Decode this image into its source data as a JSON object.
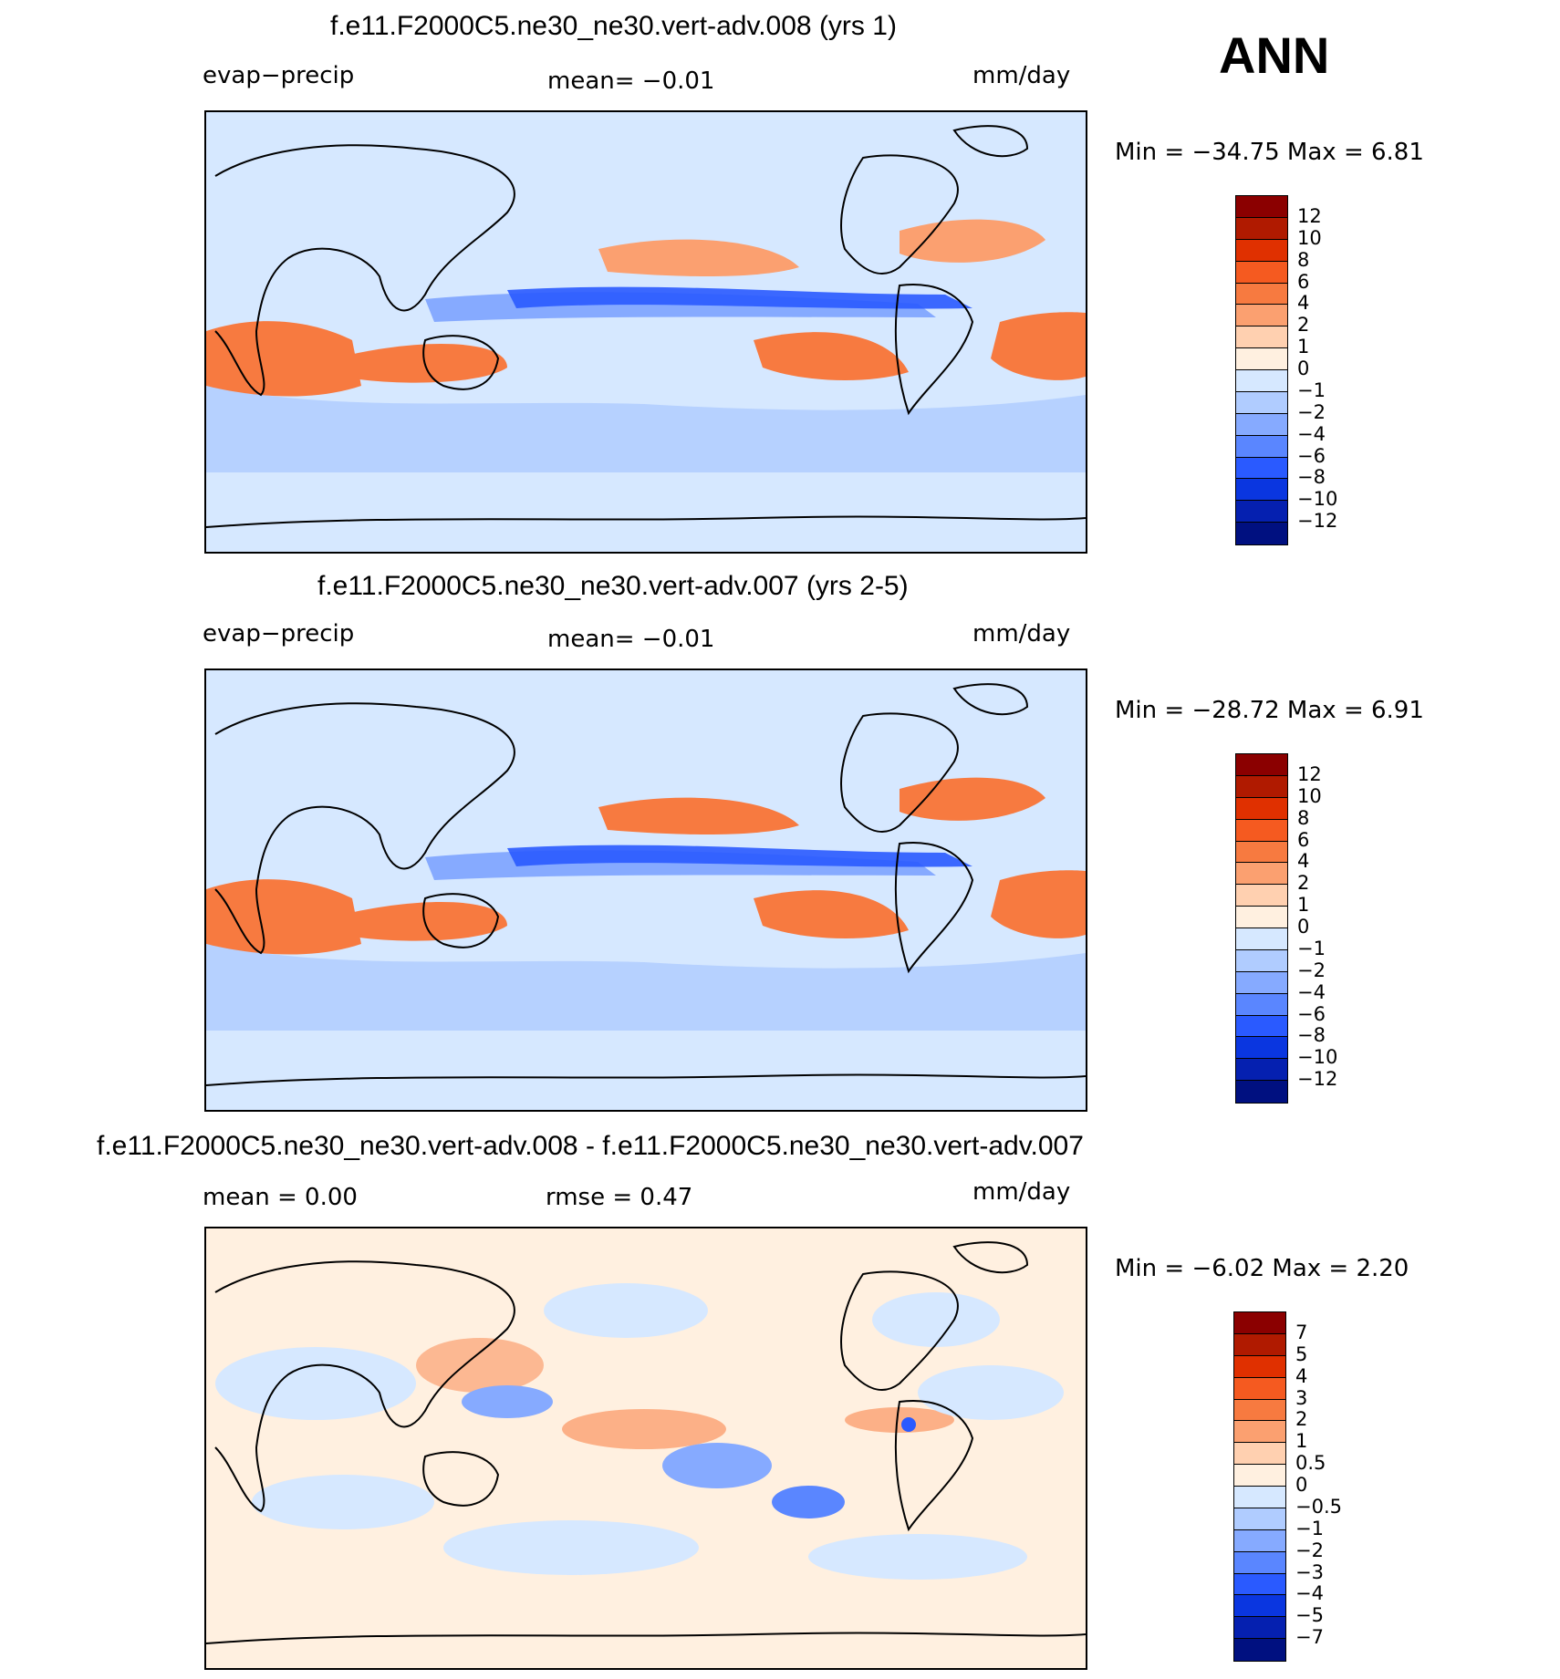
{
  "season_label": "ANN",
  "panels": [
    {
      "title": "f.e11.F2000C5.ne30_ne30.vert-adv.008 (yrs 1)",
      "left_label": "evap−precip",
      "center_label": "mean=   −0.01",
      "units": "mm/day",
      "minmax": "Min  =  −34.75  Max  =     6.81",
      "levels": [
        "12",
        "10",
        "8",
        "6",
        "4",
        "2",
        "1",
        "0",
        "−1",
        "−2",
        "−4",
        "−6",
        "−8",
        "−10",
        "−12"
      ]
    },
    {
      "title": "f.e11.F2000C5.ne30_ne30.vert-adv.007 (yrs 2-5)",
      "left_label": "evap−precip",
      "center_label": "mean=   −0.01",
      "units": "mm/day",
      "minmax": "Min  =  −28.72  Max  =     6.91",
      "levels": [
        "12",
        "10",
        "8",
        "6",
        "4",
        "2",
        "1",
        "0",
        "−1",
        "−2",
        "−4",
        "−6",
        "−8",
        "−10",
        "−12"
      ]
    },
    {
      "title": "f.e11.F2000C5.ne30_ne30.vert-adv.008 - f.e11.F2000C5.ne30_ne30.vert-adv.007",
      "left_label": "mean =      0.00",
      "center_label": "rmse =      0.47",
      "units": "mm/day",
      "minmax": "Min  =    −6.02  Max  =     2.20",
      "levels": [
        "7",
        "5",
        "4",
        "3",
        "2",
        "1",
        "0.5",
        "0",
        "−0.5",
        "−1",
        "−2",
        "−3",
        "−4",
        "−5",
        "−7"
      ]
    }
  ],
  "colors": {
    "scale": [
      "#8b0000",
      "#b01a00",
      "#e03000",
      "#f55a20",
      "#f77a40",
      "#fba070",
      "#ffd0b0",
      "#fff0e0",
      "#d6e8ff",
      "#b0ccff",
      "#86aaff",
      "#5a86ff",
      "#2a5aff",
      "#0a36e0",
      "#0520b0",
      "#001080"
    ],
    "ocean_neutral": "#d6e8ff",
    "land_outline": "#000000"
  }
}
